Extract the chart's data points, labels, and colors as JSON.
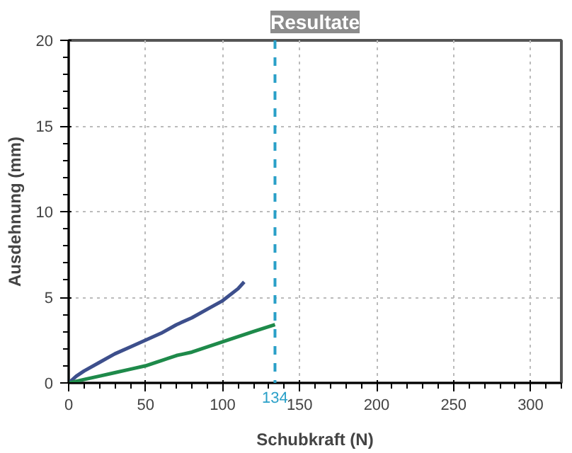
{
  "chart_data": {
    "type": "line",
    "title": "Resultate",
    "xlabel": "Schubkraft (N)",
    "ylabel": "Ausdehnung (mm)",
    "xlim": [
      0,
      320
    ],
    "ylim": [
      0,
      20
    ],
    "xticks": [
      0,
      50,
      100,
      150,
      200,
      250,
      300
    ],
    "yticks": [
      0,
      5,
      10,
      15,
      20
    ],
    "grid": true,
    "line_style": "solid",
    "series": [
      {
        "color": "#3d4f8c",
        "x": [
          0,
          5,
          10,
          20,
          30,
          40,
          50,
          60,
          70,
          80,
          90,
          100,
          110,
          114
        ],
        "values": [
          0,
          0.4,
          0.7,
          1.2,
          1.7,
          2.1,
          2.5,
          2.9,
          3.4,
          3.8,
          4.3,
          4.8,
          5.5,
          5.9
        ]
      },
      {
        "color": "#1e8a4a",
        "x": [
          0,
          5,
          10,
          20,
          30,
          40,
          50,
          60,
          70,
          80,
          90,
          100,
          110,
          120,
          134
        ],
        "values": [
          0,
          0.1,
          0.2,
          0.4,
          0.6,
          0.8,
          1.0,
          1.3,
          1.6,
          1.8,
          2.1,
          2.4,
          2.7,
          3.0,
          3.4
        ]
      }
    ],
    "ref_lines": [
      {
        "axis": "x",
        "value": 134,
        "label": "134",
        "color": "#2aa0c8",
        "line_style": "dashed"
      }
    ]
  }
}
